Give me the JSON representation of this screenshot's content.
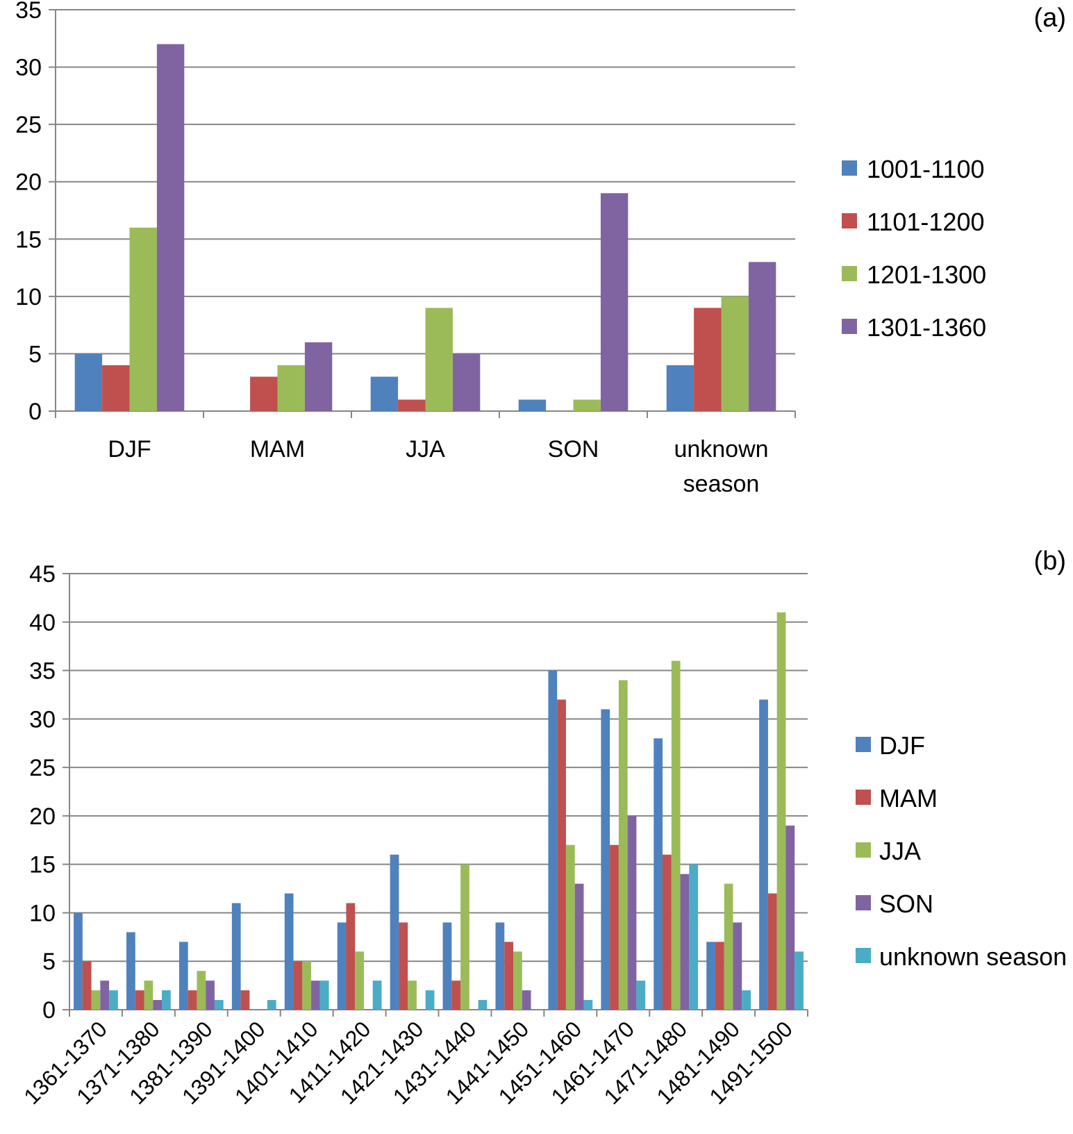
{
  "chart_data": [
    {
      "panel_label": "(a)",
      "type": "bar",
      "categories": [
        [
          "DJF"
        ],
        [
          "MAM"
        ],
        [
          "JJA"
        ],
        [
          "SON"
        ],
        [
          "unknown",
          "season"
        ]
      ],
      "ylim": [
        0,
        35
      ],
      "yticks": [
        0,
        5,
        10,
        15,
        20,
        25,
        30,
        35
      ],
      "grid": true,
      "legend_position": "right",
      "series": [
        {
          "name": "1001-1100",
          "color": "#4f81bd",
          "values": [
            5,
            0,
            3,
            1,
            4
          ]
        },
        {
          "name": "1101-1200",
          "color": "#c0504d",
          "values": [
            4,
            3,
            1,
            0,
            9
          ]
        },
        {
          "name": "1201-1300",
          "color": "#9bbb59",
          "values": [
            16,
            4,
            9,
            1,
            10
          ]
        },
        {
          "name": "1301-1360",
          "color": "#8064a2",
          "values": [
            32,
            6,
            5,
            19,
            13
          ]
        }
      ]
    },
    {
      "panel_label": "(b)",
      "type": "bar",
      "categories": [
        "1361-1370",
        "1371-1380",
        "1381-1390",
        "1391-1400",
        "1401-1410",
        "1411-1420",
        "1421-1430",
        "1431-1440",
        "1441-1450",
        "1451-1460",
        "1461-1470",
        "1471-1480",
        "1481-1490",
        "1491-1500"
      ],
      "ylim": [
        0,
        45
      ],
      "yticks": [
        0,
        5,
        10,
        15,
        20,
        25,
        30,
        35,
        40,
        45
      ],
      "grid": true,
      "legend_position": "right",
      "series": [
        {
          "name": "DJF",
          "color": "#4f81bd",
          "values": [
            10,
            8,
            7,
            11,
            12,
            9,
            16,
            9,
            9,
            35,
            31,
            28,
            7,
            32
          ]
        },
        {
          "name": "MAM",
          "color": "#c0504d",
          "values": [
            5,
            2,
            2,
            2,
            5,
            11,
            9,
            3,
            7,
            32,
            17,
            16,
            7,
            12
          ]
        },
        {
          "name": "JJA",
          "color": "#9bbb59",
          "values": [
            2,
            3,
            4,
            0,
            5,
            6,
            3,
            15,
            6,
            17,
            34,
            36,
            13,
            41
          ]
        },
        {
          "name": "SON",
          "color": "#8064a2",
          "values": [
            3,
            1,
            3,
            0,
            3,
            0,
            0,
            0,
            2,
            13,
            20,
            14,
            9,
            19
          ]
        },
        {
          "name": "unknown season",
          "color": "#4bacc6",
          "values": [
            2,
            2,
            1,
            1,
            3,
            3,
            2,
            1,
            0,
            1,
            3,
            15,
            2,
            6
          ]
        }
      ]
    }
  ]
}
